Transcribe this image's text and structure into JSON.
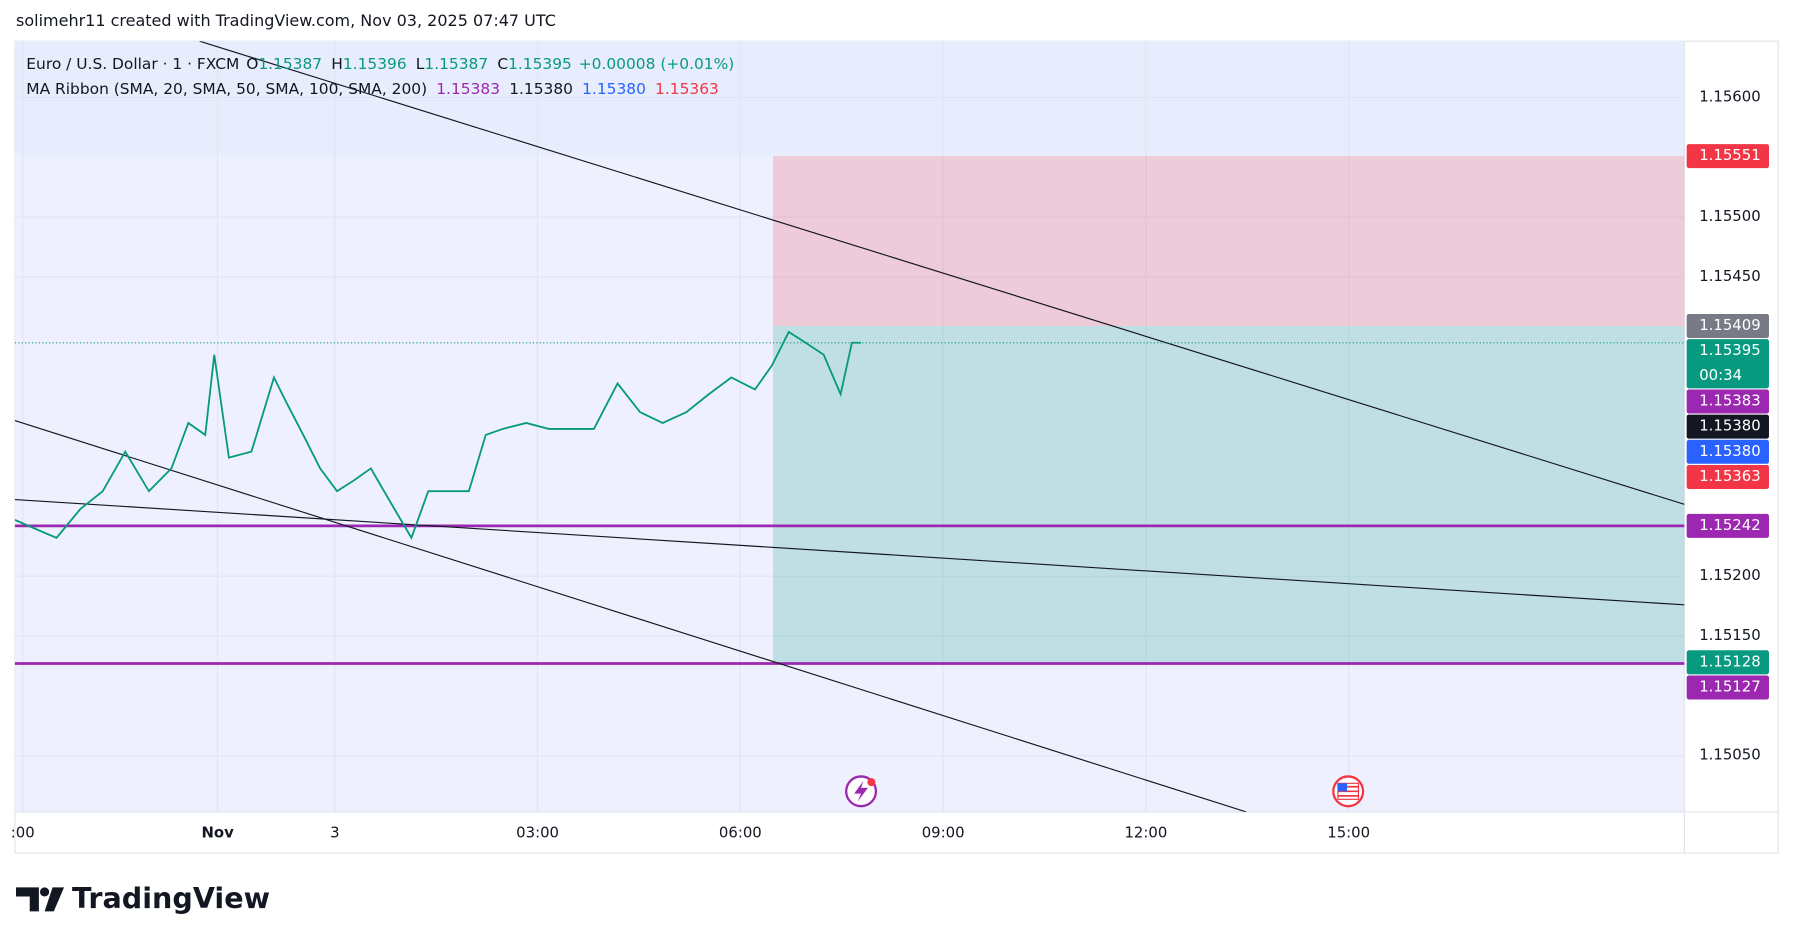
{
  "header": {
    "title": "solimehr11 created with TradingView.com, Nov 03, 2025 07:47 UTC"
  },
  "chart_data": {
    "type": "line",
    "legend": {
      "symbol": "Euro / U.S. Dollar · 1 · FXCM",
      "ohlc": [
        {
          "key": "O",
          "value": "1.15387"
        },
        {
          "key": "H",
          "value": "1.15396"
        },
        {
          "key": "L",
          "value": "1.15387"
        },
        {
          "key": "C",
          "value": "1.15395"
        }
      ],
      "change": "+0.00008 (+0.01%)",
      "ma_title": "MA Ribbon (SMA, 20, SMA, 50, SMA, 100, SMA, 200)",
      "ma_values": [
        {
          "label": "1.15383",
          "color": "#9c27b0"
        },
        {
          "label": "1.15380",
          "color": "#131722"
        },
        {
          "label": "1.15380",
          "color": "#2962ff"
        },
        {
          "label": "1.15363",
          "color": "#f23645"
        }
      ]
    },
    "x": [
      -284,
      -267,
      -247,
      -226,
      -206,
      -186,
      -165,
      -145,
      -130,
      -115,
      -107,
      -94,
      -74,
      -54,
      -44,
      -28,
      -13,
      2,
      17,
      32,
      53,
      68,
      83,
      104,
      119,
      134,
      149,
      170,
      190,
      210,
      230,
      251,
      271,
      291,
      312,
      332,
      352,
      373,
      388,
      403,
      418,
      434,
      449,
      459,
      467
    ],
    "values": [
      1.15247,
      1.1524,
      1.15232,
      1.15256,
      1.15271,
      1.15304,
      1.15271,
      1.1529,
      1.15328,
      1.15318,
      1.15385,
      1.15299,
      1.15304,
      1.15366,
      1.15347,
      1.15318,
      1.1529,
      1.15271,
      1.1528,
      1.1529,
      1.15256,
      1.15232,
      1.15271,
      1.15271,
      1.15271,
      1.15318,
      1.15323,
      1.15328,
      1.15323,
      1.15323,
      1.15323,
      1.15361,
      1.15337,
      1.15328,
      1.15337,
      1.15352,
      1.15366,
      1.15356,
      1.15376,
      1.15404,
      1.15395,
      1.15385,
      1.15352,
      1.15395,
      1.15395
    ],
    "color": "#089981",
    "xlim": [
      -284,
      1198
    ],
    "xticks": [
      {
        "value": -277,
        "label": ":00"
      },
      {
        "value": -104,
        "label": "Nov"
      },
      {
        "value": 0,
        "label": "3"
      },
      {
        "value": 180,
        "label": "03:00"
      },
      {
        "value": 360,
        "label": "06:00"
      },
      {
        "value": 540,
        "label": "09:00"
      },
      {
        "value": 720,
        "label": "12:00"
      },
      {
        "value": 900,
        "label": "15:00"
      }
    ],
    "ylim": [
      1.15003,
      1.15647
    ],
    "yticks": [
      {
        "value": 1.156,
        "label": "1.15600"
      },
      {
        "value": 1.155,
        "label": "1.15500"
      },
      {
        "value": 1.1545,
        "label": "1.15450"
      },
      {
        "value": 1.152,
        "label": "1.15200"
      },
      {
        "value": 1.1515,
        "label": "1.15150"
      },
      {
        "value": 1.1505,
        "label": "1.15050"
      }
    ],
    "grid": true,
    "position": {
      "start": 389,
      "entry": 1.15409,
      "stop": 1.15551,
      "target": 1.15128,
      "stop_color": "rgba(242,54,69,0.2)",
      "target_color": "rgba(8,153,129,0.2)"
    },
    "trend_lines": [
      {
        "x": [
          -120,
          1198
        ],
        "y": [
          1.15647,
          1.1526
        ]
      },
      {
        "x": [
          -284,
          809
        ],
        "y": [
          1.1533,
          1.15003
        ]
      },
      {
        "x": [
          -284,
          1198
        ],
        "y": [
          1.15264,
          1.15176
        ]
      }
    ],
    "horizontal_lines": [
      {
        "value": 1.15242,
        "color": "#9c27b0"
      },
      {
        "value": 1.15127,
        "color": "#9c27b0"
      }
    ],
    "price_tags": [
      {
        "value": 1.15551,
        "label": "1.15551",
        "color": "#f23645"
      },
      {
        "value": 1.15409,
        "label": "1.15409",
        "color": "#787b86"
      },
      {
        "value": 1.15395,
        "label": "1.15395",
        "color": "#089981",
        "sub": "00:34"
      },
      {
        "value": 1.15383,
        "label": "1.15383",
        "color": "#9c27b0"
      },
      {
        "value": 1.1538,
        "label": "1.15380",
        "color": "#131722"
      },
      {
        "value": 1.1538,
        "label": "1.15380",
        "color": "#2962ff"
      },
      {
        "value": 1.15363,
        "label": "1.15363",
        "color": "#f23645"
      },
      {
        "value": 1.15242,
        "label": "1.15242",
        "color": "#9c27b0"
      },
      {
        "value": 1.15128,
        "label": "1.15128",
        "color": "#089981"
      },
      {
        "value": 1.15127,
        "label": "1.15127",
        "color": "#9c27b0"
      }
    ]
  },
  "footer": {
    "brand": "TradingView"
  }
}
